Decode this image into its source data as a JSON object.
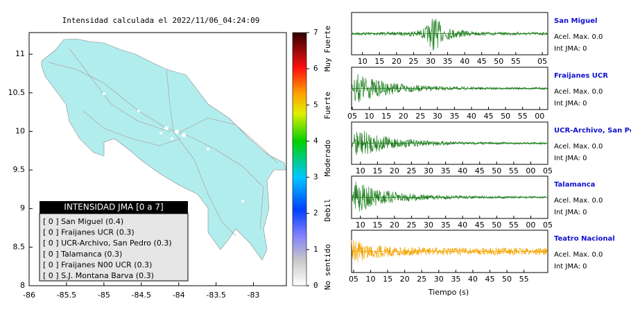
{
  "map": {
    "title": "Intensidad calculada el 2022/11/06_04:24:09",
    "xlim": [
      -86,
      -82.56
    ],
    "ylim": [
      8,
      11.28
    ],
    "xticks": [
      -86,
      -85.5,
      -85,
      -84.5,
      -84,
      -83.5,
      -83
    ],
    "yticks": [
      8,
      8.5,
      9,
      9.5,
      10,
      10.5,
      11
    ]
  },
  "colorbar": {
    "lim": [
      0,
      7
    ],
    "ticks": [
      0,
      1,
      2,
      3,
      4,
      5,
      6,
      7
    ],
    "labels": [
      "No sentido",
      "Debil",
      "Moderado",
      "Fuerte",
      "Muy Fuerte"
    ]
  },
  "legend": {
    "title": "INTENSIDAD JMA [0 a 7]",
    "entries": [
      "[ 0 ]  San Miguel (0.4)",
      "[ 0 ]  Fraijanes UCR (0.3)",
      "[ 0 ]  UCR-Archivo, San Pedro (0.3)",
      "[ 0 ]  Talamanca (0.3)",
      "[ 0 ]  Fraijanes N00 UCR (0.3)",
      "[ 0 ]  S.J. Montana Barva (0.3)"
    ]
  },
  "traces": [
    {
      "station": "San Miguel",
      "acel": "Acel. Max. 0.0",
      "int": "Int JMA: 0",
      "color": "#1b7d1b",
      "xlim": [
        0,
        57.6
      ],
      "xticks": [
        {
          "value": 3.2,
          "label": "10"
        },
        {
          "value": 8.2,
          "label": "15"
        },
        {
          "value": 13.2,
          "label": "20"
        },
        {
          "value": 18.2,
          "label": "25"
        },
        {
          "value": 23.2,
          "label": "30"
        },
        {
          "value": 28.2,
          "label": "35"
        },
        {
          "value": 33.2,
          "label": "40"
        },
        {
          "value": 38.2,
          "label": "45"
        },
        {
          "value": 43.2,
          "label": "50"
        },
        {
          "value": 48.2,
          "label": "55"
        },
        {
          "value": 56,
          "label": "05"
        }
      ]
    },
    {
      "station": "Fraijanes UCR",
      "acel": "Acel. Max. 0.0",
      "int": "Int JMA: 0",
      "color": "#1b7d1b",
      "xlim": [
        0,
        57.6
      ],
      "xticks": [
        {
          "value": 0.2,
          "label": "05"
        },
        {
          "value": 5.2,
          "label": "10"
        },
        {
          "value": 10.2,
          "label": "15"
        },
        {
          "value": 15.2,
          "label": "20"
        },
        {
          "value": 20.2,
          "label": "25"
        },
        {
          "value": 25.2,
          "label": "30"
        },
        {
          "value": 30.2,
          "label": "35"
        },
        {
          "value": 35.2,
          "label": "40"
        },
        {
          "value": 40.2,
          "label": "45"
        },
        {
          "value": 45.2,
          "label": "50"
        },
        {
          "value": 50.2,
          "label": "55"
        },
        {
          "value": 55.2,
          "label": "00"
        }
      ]
    },
    {
      "station": "UCR-Archivo, San Pedro",
      "acel": "Acel. Max. 0.0",
      "int": "Int JMA: 0",
      "color": "#1b7d1b",
      "xlim": [
        0,
        57.6
      ],
      "xticks": [
        {
          "value": 2.6,
          "label": "10"
        },
        {
          "value": 7.6,
          "label": "15"
        },
        {
          "value": 12.6,
          "label": "20"
        },
        {
          "value": 17.6,
          "label": "25"
        },
        {
          "value": 22.6,
          "label": "30"
        },
        {
          "value": 27.6,
          "label": "35"
        },
        {
          "value": 32.6,
          "label": "40"
        },
        {
          "value": 37.6,
          "label": "45"
        },
        {
          "value": 42.6,
          "label": "50"
        },
        {
          "value": 47.6,
          "label": "55"
        },
        {
          "value": 52.6,
          "label": "00"
        },
        {
          "value": 57.6,
          "label": "05"
        }
      ]
    },
    {
      "station": "Talamanca",
      "acel": "Acel. Max. 0.0",
      "int": "Int JMA: 0",
      "color": "#1b7d1b",
      "xlim": [
        0,
        57.6
      ],
      "xticks": [
        {
          "value": 2.6,
          "label": "10"
        },
        {
          "value": 7.6,
          "label": "15"
        },
        {
          "value": 12.6,
          "label": "20"
        },
        {
          "value": 17.6,
          "label": "25"
        },
        {
          "value": 22.6,
          "label": "30"
        },
        {
          "value": 27.6,
          "label": "35"
        },
        {
          "value": 32.6,
          "label": "40"
        },
        {
          "value": 37.6,
          "label": "45"
        },
        {
          "value": 42.6,
          "label": "50"
        },
        {
          "value": 47.6,
          "label": "55"
        },
        {
          "value": 52.6,
          "label": "00"
        },
        {
          "value": 57.6,
          "label": "05"
        }
      ]
    },
    {
      "station": "Teatro Nacional",
      "acel": "Acel. Max. 0.0",
      "int": "Int JMA: 0",
      "color": "#f5a400",
      "xlim": [
        0,
        57.6
      ],
      "xticks": [
        {
          "value": 0.6,
          "label": "05"
        },
        {
          "value": 5.6,
          "label": "10"
        },
        {
          "value": 10.6,
          "label": "15"
        },
        {
          "value": 15.6,
          "label": "20"
        },
        {
          "value": 20.6,
          "label": "25"
        },
        {
          "value": 25.6,
          "label": "30"
        },
        {
          "value": 30.6,
          "label": "35"
        },
        {
          "value": 35.6,
          "label": "40"
        },
        {
          "value": 40.6,
          "label": "45"
        },
        {
          "value": 45.6,
          "label": "50"
        },
        {
          "value": 50.6,
          "label": "55"
        }
      ]
    }
  ],
  "xlabel": "Tiempo (s)"
}
